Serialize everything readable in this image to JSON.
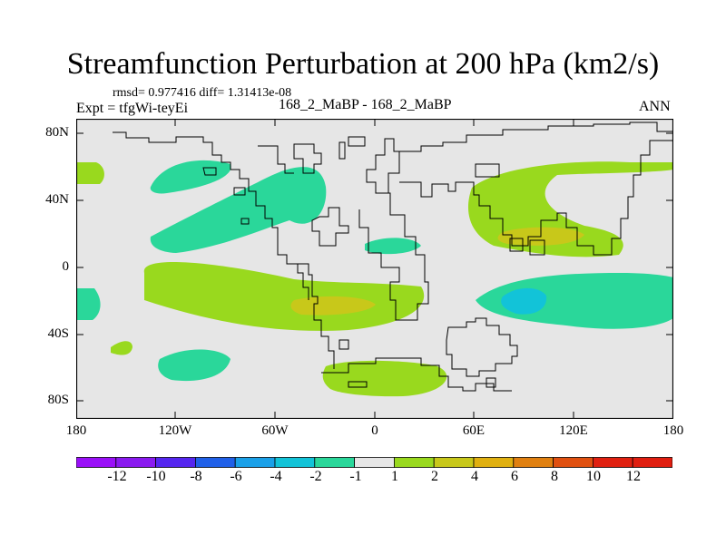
{
  "figure": {
    "title": "Streamfunction Perturbation at 200 hPa (km2/s)",
    "stats": "rmsd= 0.977416 diff= 1.31413e-08",
    "experiment": "Expt = tfgWi-teyEi",
    "case_id": "168_2_MaBP - 168_2_MaBP",
    "period": "ANN"
  },
  "map": {
    "lat_labels": [
      "80N",
      "40N",
      "0",
      "40S",
      "80S"
    ],
    "lon_labels": [
      "180",
      "120W",
      "60W",
      "0",
      "60E",
      "120E",
      "180"
    ],
    "background_color": "#e6e6e6",
    "contour_colors": {
      "neg4_to_neg2": "#12c3d8",
      "neg2_to_neg1": "#2ad79a",
      "1_to_2": "#99d91e",
      "2_to_4": "#c8c81a"
    }
  },
  "colorbar": {
    "labels": [
      "-12",
      "-10",
      "-8",
      "-6",
      "-4",
      "-2",
      "-1",
      "1",
      "2",
      "4",
      "6",
      "8",
      "10",
      "12"
    ],
    "colors": [
      "#8a1af0",
      "#5526f0",
      "#2060e8",
      "#1aa0e8",
      "#12c3d8",
      "#2ad79a",
      "#e6e6e6",
      "#99d91e",
      "#c8c81a",
      "#e0b010",
      "#e08010",
      "#e05010",
      "#e02010",
      "#e01e10"
    ]
  }
}
